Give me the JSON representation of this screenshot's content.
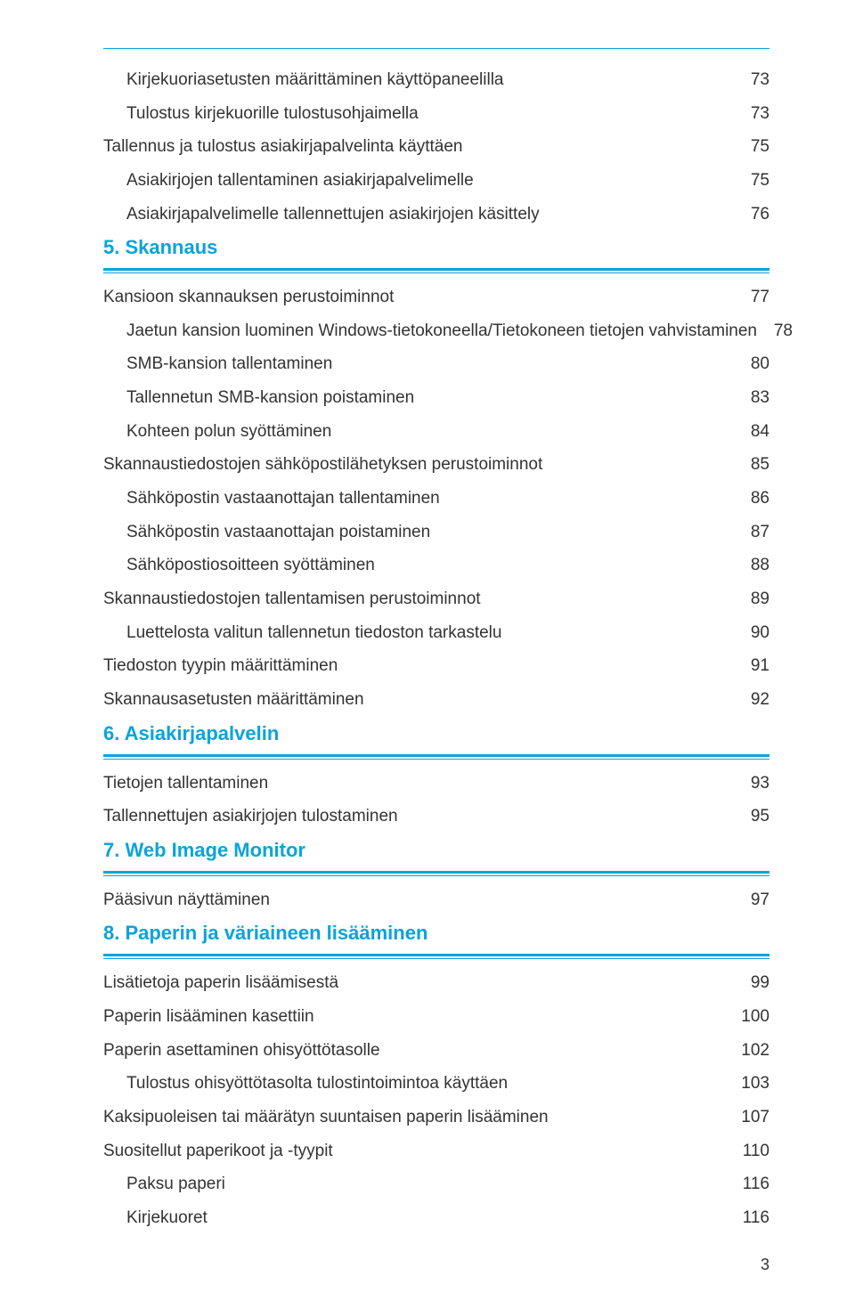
{
  "page_number": "3",
  "text_color": "#333333",
  "accent_color": "#09a4d9",
  "background_color": "#ffffff",
  "font_size_entry": 19,
  "font_size_heading": 22,
  "lines": [
    {
      "type": "toprule"
    },
    {
      "type": "entry",
      "indent": 1,
      "label": "Kirjekuoriasetusten määrittäminen käyttöpaneelilla",
      "page": "73"
    },
    {
      "type": "entry",
      "indent": 1,
      "label": "Tulostus kirjekuorille tulostusohjaimella",
      "page": "73"
    },
    {
      "type": "entry",
      "indent": 0,
      "label": "Tallennus ja tulostus asiakirjapalvelinta käyttäen",
      "page": "75"
    },
    {
      "type": "entry",
      "indent": 1,
      "label": "Asiakirjojen tallentaminen asiakirjapalvelimelle",
      "page": "75"
    },
    {
      "type": "entry",
      "indent": 1,
      "label": "Asiakirjapalvelimelle tallennettujen asiakirjojen käsittely",
      "page": "76"
    },
    {
      "type": "heading",
      "label": "5. Skannaus"
    },
    {
      "type": "rule"
    },
    {
      "type": "entry",
      "indent": 0,
      "label": "Kansioon skannauksen perustoiminnot",
      "page": "77"
    },
    {
      "type": "entry",
      "indent": 1,
      "label": "Jaetun kansion luominen Windows-tietokoneella/Tietokoneen tietojen vahvistaminen",
      "page": "78"
    },
    {
      "type": "entry",
      "indent": 1,
      "label": "SMB-kansion tallentaminen",
      "page": "80"
    },
    {
      "type": "entry",
      "indent": 1,
      "label": "Tallennetun SMB-kansion poistaminen",
      "page": "83"
    },
    {
      "type": "entry",
      "indent": 1,
      "label": "Kohteen polun syöttäminen",
      "page": "84"
    },
    {
      "type": "entry",
      "indent": 0,
      "label": "Skannaustiedostojen sähköpostilähetyksen perustoiminnot",
      "page": "85"
    },
    {
      "type": "entry",
      "indent": 1,
      "label": "Sähköpostin vastaanottajan tallentaminen",
      "page": "86"
    },
    {
      "type": "entry",
      "indent": 1,
      "label": "Sähköpostin vastaanottajan poistaminen",
      "page": "87"
    },
    {
      "type": "entry",
      "indent": 1,
      "label": "Sähköpostiosoitteen syöttäminen",
      "page": "88"
    },
    {
      "type": "entry",
      "indent": 0,
      "label": "Skannaustiedostojen tallentamisen perustoiminnot",
      "page": "89"
    },
    {
      "type": "entry",
      "indent": 1,
      "label": "Luettelosta valitun tallennetun tiedoston tarkastelu",
      "page": "90"
    },
    {
      "type": "entry",
      "indent": 0,
      "label": "Tiedoston tyypin määrittäminen",
      "page": "91"
    },
    {
      "type": "entry",
      "indent": 0,
      "label": "Skannausasetusten määrittäminen",
      "page": "92"
    },
    {
      "type": "heading",
      "label": "6. Asiakirjapalvelin"
    },
    {
      "type": "rule"
    },
    {
      "type": "entry",
      "indent": 0,
      "label": "Tietojen tallentaminen",
      "page": "93"
    },
    {
      "type": "entry",
      "indent": 0,
      "label": "Tallennettujen asiakirjojen tulostaminen",
      "page": "95"
    },
    {
      "type": "heading",
      "label": "7. Web Image Monitor"
    },
    {
      "type": "rule"
    },
    {
      "type": "entry",
      "indent": 0,
      "label": "Pääsivun näyttäminen",
      "page": "97"
    },
    {
      "type": "heading",
      "label": "8. Paperin ja väriaineen lisääminen"
    },
    {
      "type": "rule"
    },
    {
      "type": "entry",
      "indent": 0,
      "label": "Lisätietoja paperin lisäämisestä",
      "page": "99"
    },
    {
      "type": "entry",
      "indent": 0,
      "label": "Paperin lisääminen kasettiin",
      "page": "100"
    },
    {
      "type": "entry",
      "indent": 0,
      "label": "Paperin asettaminen ohisyöttötasolle",
      "page": "102"
    },
    {
      "type": "entry",
      "indent": 1,
      "label": "Tulostus ohisyöttötasolta tulostintoimintoa käyttäen",
      "page": "103"
    },
    {
      "type": "entry",
      "indent": 0,
      "label": "Kaksipuoleisen tai määrätyn suuntaisen paperin lisääminen",
      "page": "107"
    },
    {
      "type": "entry",
      "indent": 0,
      "label": "Suositellut paperikoot ja -tyypit",
      "page": "110"
    },
    {
      "type": "entry",
      "indent": 1,
      "label": "Paksu paperi",
      "page": "116"
    },
    {
      "type": "entry",
      "indent": 1,
      "label": "Kirjekuoret",
      "page": "116"
    }
  ]
}
